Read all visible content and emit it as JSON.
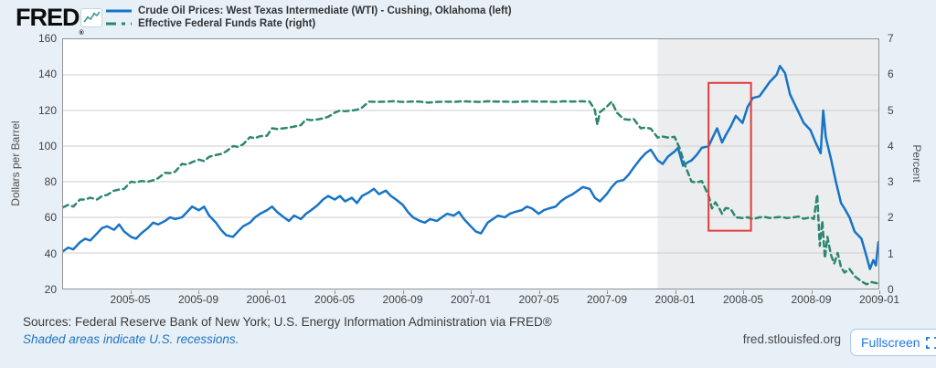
{
  "header": {
    "logo_text": "FRED",
    "registered_mark": "®",
    "legend": [
      {
        "label": "Crude Oil Prices: West Texas Intermediate (WTI) - Cushing, Oklahoma (left)",
        "color": "#1773c6",
        "line_style": "solid"
      },
      {
        "label": "Effective Federal Funds Rate (right)",
        "color": "#2d8671",
        "line_style": "dashed"
      }
    ]
  },
  "chart_data": {
    "type": "line",
    "x_axis": {
      "start": "2005-01",
      "end": "2009-01",
      "total_months": 48,
      "tick_labels": [
        {
          "label": "2005-05",
          "month": 4
        },
        {
          "label": "2005-09",
          "month": 8
        },
        {
          "label": "2006-01",
          "month": 12
        },
        {
          "label": "2006-05",
          "month": 16
        },
        {
          "label": "2006-09",
          "month": 20
        },
        {
          "label": "2007-01",
          "month": 24
        },
        {
          "label": "2007-05",
          "month": 28
        },
        {
          "label": "2007-09",
          "month": 32
        },
        {
          "label": "2008-01",
          "month": 36
        },
        {
          "label": "2008-05",
          "month": 40
        },
        {
          "label": "2008-09",
          "month": 44
        },
        {
          "label": "2009-01",
          "month": 48
        }
      ]
    },
    "left_axis": {
      "label": "Dollars per Barrel",
      "min": 20,
      "max": 160,
      "ticks": [
        "160",
        "140",
        "120",
        "100",
        "80",
        "60",
        "40",
        "20"
      ]
    },
    "right_axis": {
      "label": "Percent",
      "min": 0,
      "max": 7,
      "ticks": [
        "7",
        "6",
        "5",
        "4",
        "3",
        "2",
        "1",
        "0"
      ]
    },
    "grid_color": "#cdcdcd",
    "recession_shading": {
      "start_month": 35,
      "end_month": 48,
      "fill": "#67737a",
      "opacity": 0.13
    },
    "annotation_box": {
      "x0_month": 38,
      "x1_month": 40.5,
      "y0_dollars": 52.5,
      "y1_dollars": 135.5,
      "color": "#e03c3c"
    },
    "series": [
      {
        "name": "Crude Oil Prices: West Texas Intermediate (WTI) - Cushing, Oklahoma",
        "axis": "left",
        "color": "#1773c6",
        "dash": null,
        "width": 2.5,
        "points": [
          [
            0,
            41
          ],
          [
            0.3,
            43
          ],
          [
            0.6,
            42
          ],
          [
            1,
            46
          ],
          [
            1.3,
            48
          ],
          [
            1.6,
            47
          ],
          [
            2,
            51
          ],
          [
            2.3,
            54
          ],
          [
            2.6,
            55
          ],
          [
            3,
            53
          ],
          [
            3.3,
            56
          ],
          [
            3.6,
            52
          ],
          [
            4,
            49
          ],
          [
            4.3,
            48
          ],
          [
            4.6,
            51
          ],
          [
            5,
            54
          ],
          [
            5.3,
            57
          ],
          [
            5.6,
            56
          ],
          [
            6,
            58
          ],
          [
            6.3,
            60
          ],
          [
            6.6,
            59
          ],
          [
            7,
            60
          ],
          [
            7.3,
            63
          ],
          [
            7.6,
            66
          ],
          [
            8,
            64
          ],
          [
            8.3,
            66
          ],
          [
            8.6,
            61
          ],
          [
            9,
            57
          ],
          [
            9.3,
            53
          ],
          [
            9.6,
            50
          ],
          [
            10,
            49
          ],
          [
            10.3,
            52
          ],
          [
            10.6,
            55
          ],
          [
            11,
            57
          ],
          [
            11.3,
            60
          ],
          [
            11.6,
            62
          ],
          [
            12,
            64
          ],
          [
            12.3,
            66
          ],
          [
            12.6,
            63
          ],
          [
            13,
            60
          ],
          [
            13.3,
            58
          ],
          [
            13.6,
            61
          ],
          [
            14,
            59
          ],
          [
            14.3,
            62
          ],
          [
            14.6,
            64
          ],
          [
            15,
            67
          ],
          [
            15.3,
            70
          ],
          [
            15.6,
            72
          ],
          [
            16,
            70
          ],
          [
            16.3,
            72
          ],
          [
            16.6,
            69
          ],
          [
            17,
            71
          ],
          [
            17.3,
            68
          ],
          [
            17.6,
            72
          ],
          [
            18,
            74
          ],
          [
            18.3,
            76
          ],
          [
            18.6,
            73
          ],
          [
            19,
            75
          ],
          [
            19.3,
            72
          ],
          [
            19.6,
            70
          ],
          [
            20,
            67
          ],
          [
            20.3,
            63
          ],
          [
            20.6,
            60
          ],
          [
            21,
            58
          ],
          [
            21.3,
            57
          ],
          [
            21.6,
            59
          ],
          [
            22,
            58
          ],
          [
            22.3,
            60
          ],
          [
            22.6,
            62
          ],
          [
            23,
            61
          ],
          [
            23.3,
            63
          ],
          [
            23.6,
            59
          ],
          [
            24,
            55
          ],
          [
            24.3,
            52
          ],
          [
            24.6,
            51
          ],
          [
            25,
            57
          ],
          [
            25.3,
            59
          ],
          [
            25.6,
            61
          ],
          [
            26,
            60
          ],
          [
            26.3,
            62
          ],
          [
            26.6,
            63
          ],
          [
            27,
            64
          ],
          [
            27.3,
            66
          ],
          [
            27.6,
            65
          ],
          [
            28,
            62
          ],
          [
            28.3,
            64
          ],
          [
            28.6,
            65
          ],
          [
            29,
            66
          ],
          [
            29.3,
            69
          ],
          [
            29.6,
            71
          ],
          [
            30,
            73
          ],
          [
            30.3,
            75
          ],
          [
            30.6,
            77
          ],
          [
            31,
            76
          ],
          [
            31.3,
            71
          ],
          [
            31.6,
            69
          ],
          [
            32,
            73
          ],
          [
            32.3,
            77
          ],
          [
            32.6,
            80
          ],
          [
            33,
            81
          ],
          [
            33.3,
            84
          ],
          [
            33.6,
            88
          ],
          [
            34,
            93
          ],
          [
            34.3,
            96
          ],
          [
            34.6,
            98
          ],
          [
            35,
            92
          ],
          [
            35.3,
            90
          ],
          [
            35.6,
            94
          ],
          [
            36,
            97
          ],
          [
            36.2,
            99
          ],
          [
            36.5,
            89
          ],
          [
            36.8,
            91
          ],
          [
            37,
            92
          ],
          [
            37.3,
            95
          ],
          [
            37.6,
            99
          ],
          [
            38,
            100
          ],
          [
            38.2,
            104
          ],
          [
            38.5,
            110
          ],
          [
            38.8,
            102
          ],
          [
            39,
            106
          ],
          [
            39.3,
            111
          ],
          [
            39.6,
            117
          ],
          [
            40,
            113
          ],
          [
            40.3,
            122
          ],
          [
            40.6,
            127
          ],
          [
            41,
            128
          ],
          [
            41.3,
            132
          ],
          [
            41.6,
            136
          ],
          [
            42,
            140
          ],
          [
            42.2,
            145
          ],
          [
            42.5,
            141
          ],
          [
            42.8,
            129
          ],
          [
            43,
            125
          ],
          [
            43.3,
            119
          ],
          [
            43.6,
            113
          ],
          [
            44,
            109
          ],
          [
            44.3,
            102
          ],
          [
            44.6,
            96
          ],
          [
            44.75,
            120
          ],
          [
            44.9,
            105
          ],
          [
            45,
            101
          ],
          [
            45.2,
            93
          ],
          [
            45.5,
            80
          ],
          [
            45.8,
            68
          ],
          [
            46,
            65
          ],
          [
            46.3,
            60
          ],
          [
            46.6,
            52
          ],
          [
            47,
            48
          ],
          [
            47.3,
            38
          ],
          [
            47.5,
            31
          ],
          [
            47.7,
            36
          ],
          [
            47.85,
            33
          ],
          [
            48,
            46
          ]
        ]
      },
      {
        "name": "Effective Federal Funds Rate",
        "axis": "right",
        "color": "#2d8671",
        "dash": "6,4.5",
        "width": 2.5,
        "points": [
          [
            0,
            2.28
          ],
          [
            0.3,
            2.35
          ],
          [
            0.6,
            2.3
          ],
          [
            1,
            2.5
          ],
          [
            1.3,
            2.5
          ],
          [
            1.6,
            2.55
          ],
          [
            2,
            2.5
          ],
          [
            2.3,
            2.6
          ],
          [
            2.6,
            2.63
          ],
          [
            3,
            2.75
          ],
          [
            3.3,
            2.78
          ],
          [
            3.6,
            2.8
          ],
          [
            4,
            3
          ],
          [
            4.3,
            2.98
          ],
          [
            4.6,
            3.02
          ],
          [
            5,
            3
          ],
          [
            5.3,
            3.04
          ],
          [
            5.6,
            3.1
          ],
          [
            6,
            3.25
          ],
          [
            6.3,
            3.24
          ],
          [
            6.6,
            3.28
          ],
          [
            7,
            3.5
          ],
          [
            7.3,
            3.48
          ],
          [
            7.6,
            3.55
          ],
          [
            8,
            3.62
          ],
          [
            8.3,
            3.58
          ],
          [
            8.6,
            3.7
          ],
          [
            9,
            3.75
          ],
          [
            9.3,
            3.78
          ],
          [
            9.6,
            3.85
          ],
          [
            10,
            4
          ],
          [
            10.3,
            3.98
          ],
          [
            10.6,
            4.05
          ],
          [
            11,
            4.25
          ],
          [
            11.3,
            4.22
          ],
          [
            11.6,
            4.28
          ],
          [
            12,
            4.29
          ],
          [
            12.3,
            4.5
          ],
          [
            12.6,
            4.48
          ],
          [
            13,
            4.5
          ],
          [
            13.3,
            4.52
          ],
          [
            13.6,
            4.55
          ],
          [
            14,
            4.59
          ],
          [
            14.3,
            4.75
          ],
          [
            14.6,
            4.73
          ],
          [
            15,
            4.75
          ],
          [
            15.3,
            4.78
          ],
          [
            15.6,
            4.82
          ],
          [
            16,
            4.94
          ],
          [
            16.3,
            5
          ],
          [
            16.6,
            4.98
          ],
          [
            17,
            5
          ],
          [
            17.3,
            5.02
          ],
          [
            17.6,
            5.08
          ],
          [
            18,
            5.25
          ],
          [
            18.5,
            5.24
          ],
          [
            19,
            5.25
          ],
          [
            19.5,
            5.26
          ],
          [
            20,
            5.24
          ],
          [
            20.5,
            5.25
          ],
          [
            21,
            5.25
          ],
          [
            21.5,
            5.22
          ],
          [
            22,
            5.24
          ],
          [
            22.5,
            5.25
          ],
          [
            23,
            5.24
          ],
          [
            23.5,
            5.26
          ],
          [
            24,
            5.25
          ],
          [
            24.5,
            5.24
          ],
          [
            25,
            5.26
          ],
          [
            25.5,
            5.25
          ],
          [
            26,
            5.25
          ],
          [
            26.5,
            5.24
          ],
          [
            27,
            5.25
          ],
          [
            27.5,
            5.26
          ],
          [
            28,
            5.25
          ],
          [
            28.5,
            5.25
          ],
          [
            29,
            5.24
          ],
          [
            29.5,
            5.26
          ],
          [
            30,
            5.25
          ],
          [
            30.5,
            5.26
          ],
          [
            31,
            5.25
          ],
          [
            31.3,
            5.02
          ],
          [
            31.45,
            4.6
          ],
          [
            31.6,
            4.95
          ],
          [
            32,
            5.1
          ],
          [
            32.3,
            5.25
          ],
          [
            32.6,
            4.94
          ],
          [
            33,
            4.76
          ],
          [
            33.3,
            4.74
          ],
          [
            33.6,
            4.76
          ],
          [
            34,
            4.5
          ],
          [
            34.3,
            4.52
          ],
          [
            34.6,
            4.49
          ],
          [
            35,
            4.24
          ],
          [
            35.3,
            4.27
          ],
          [
            35.6,
            4.24
          ],
          [
            36,
            4.26
          ],
          [
            36.3,
            3.94
          ],
          [
            36.6,
            3.48
          ],
          [
            37,
            3
          ],
          [
            37.3,
            2.98
          ],
          [
            37.6,
            3.02
          ],
          [
            38,
            2.61
          ],
          [
            38.2,
            2.25
          ],
          [
            38.4,
            2.42
          ],
          [
            38.6,
            2.28
          ],
          [
            38.8,
            2.1
          ],
          [
            39,
            2.26
          ],
          [
            39.3,
            2.24
          ],
          [
            39.6,
            2
          ],
          [
            40,
            1.98
          ],
          [
            40.3,
            2
          ],
          [
            40.6,
            1.95
          ],
          [
            41,
            2
          ],
          [
            41.3,
            2.01
          ],
          [
            41.6,
            1.98
          ],
          [
            42,
            2
          ],
          [
            42.3,
            2.01
          ],
          [
            42.6,
            1.98
          ],
          [
            43,
            2
          ],
          [
            43.3,
            2.02
          ],
          [
            43.6,
            1.96
          ],
          [
            44,
            2
          ],
          [
            44.2,
            1.95
          ],
          [
            44.4,
            2.64
          ],
          [
            44.55,
            1.2
          ],
          [
            44.7,
            1.9
          ],
          [
            44.85,
            0.85
          ],
          [
            45,
            1.45
          ],
          [
            45.2,
            0.95
          ],
          [
            45.4,
            0.7
          ],
          [
            45.6,
            1
          ],
          [
            45.8,
            0.6
          ],
          [
            46,
            0.45
          ],
          [
            46.3,
            0.55
          ],
          [
            46.6,
            0.35
          ],
          [
            47,
            0.2
          ],
          [
            47.3,
            0.12
          ],
          [
            47.6,
            0.18
          ],
          [
            48,
            0.14
          ]
        ]
      }
    ]
  },
  "footer": {
    "sources_text": "Sources: Federal Reserve Bank of New York; U.S. Energy Information Administration via FRED®",
    "recession_note": "Shaded areas indicate U.S. recessions.",
    "site_url": "fred.stlouisfed.org",
    "fullscreen_label": "Fullscreen"
  }
}
